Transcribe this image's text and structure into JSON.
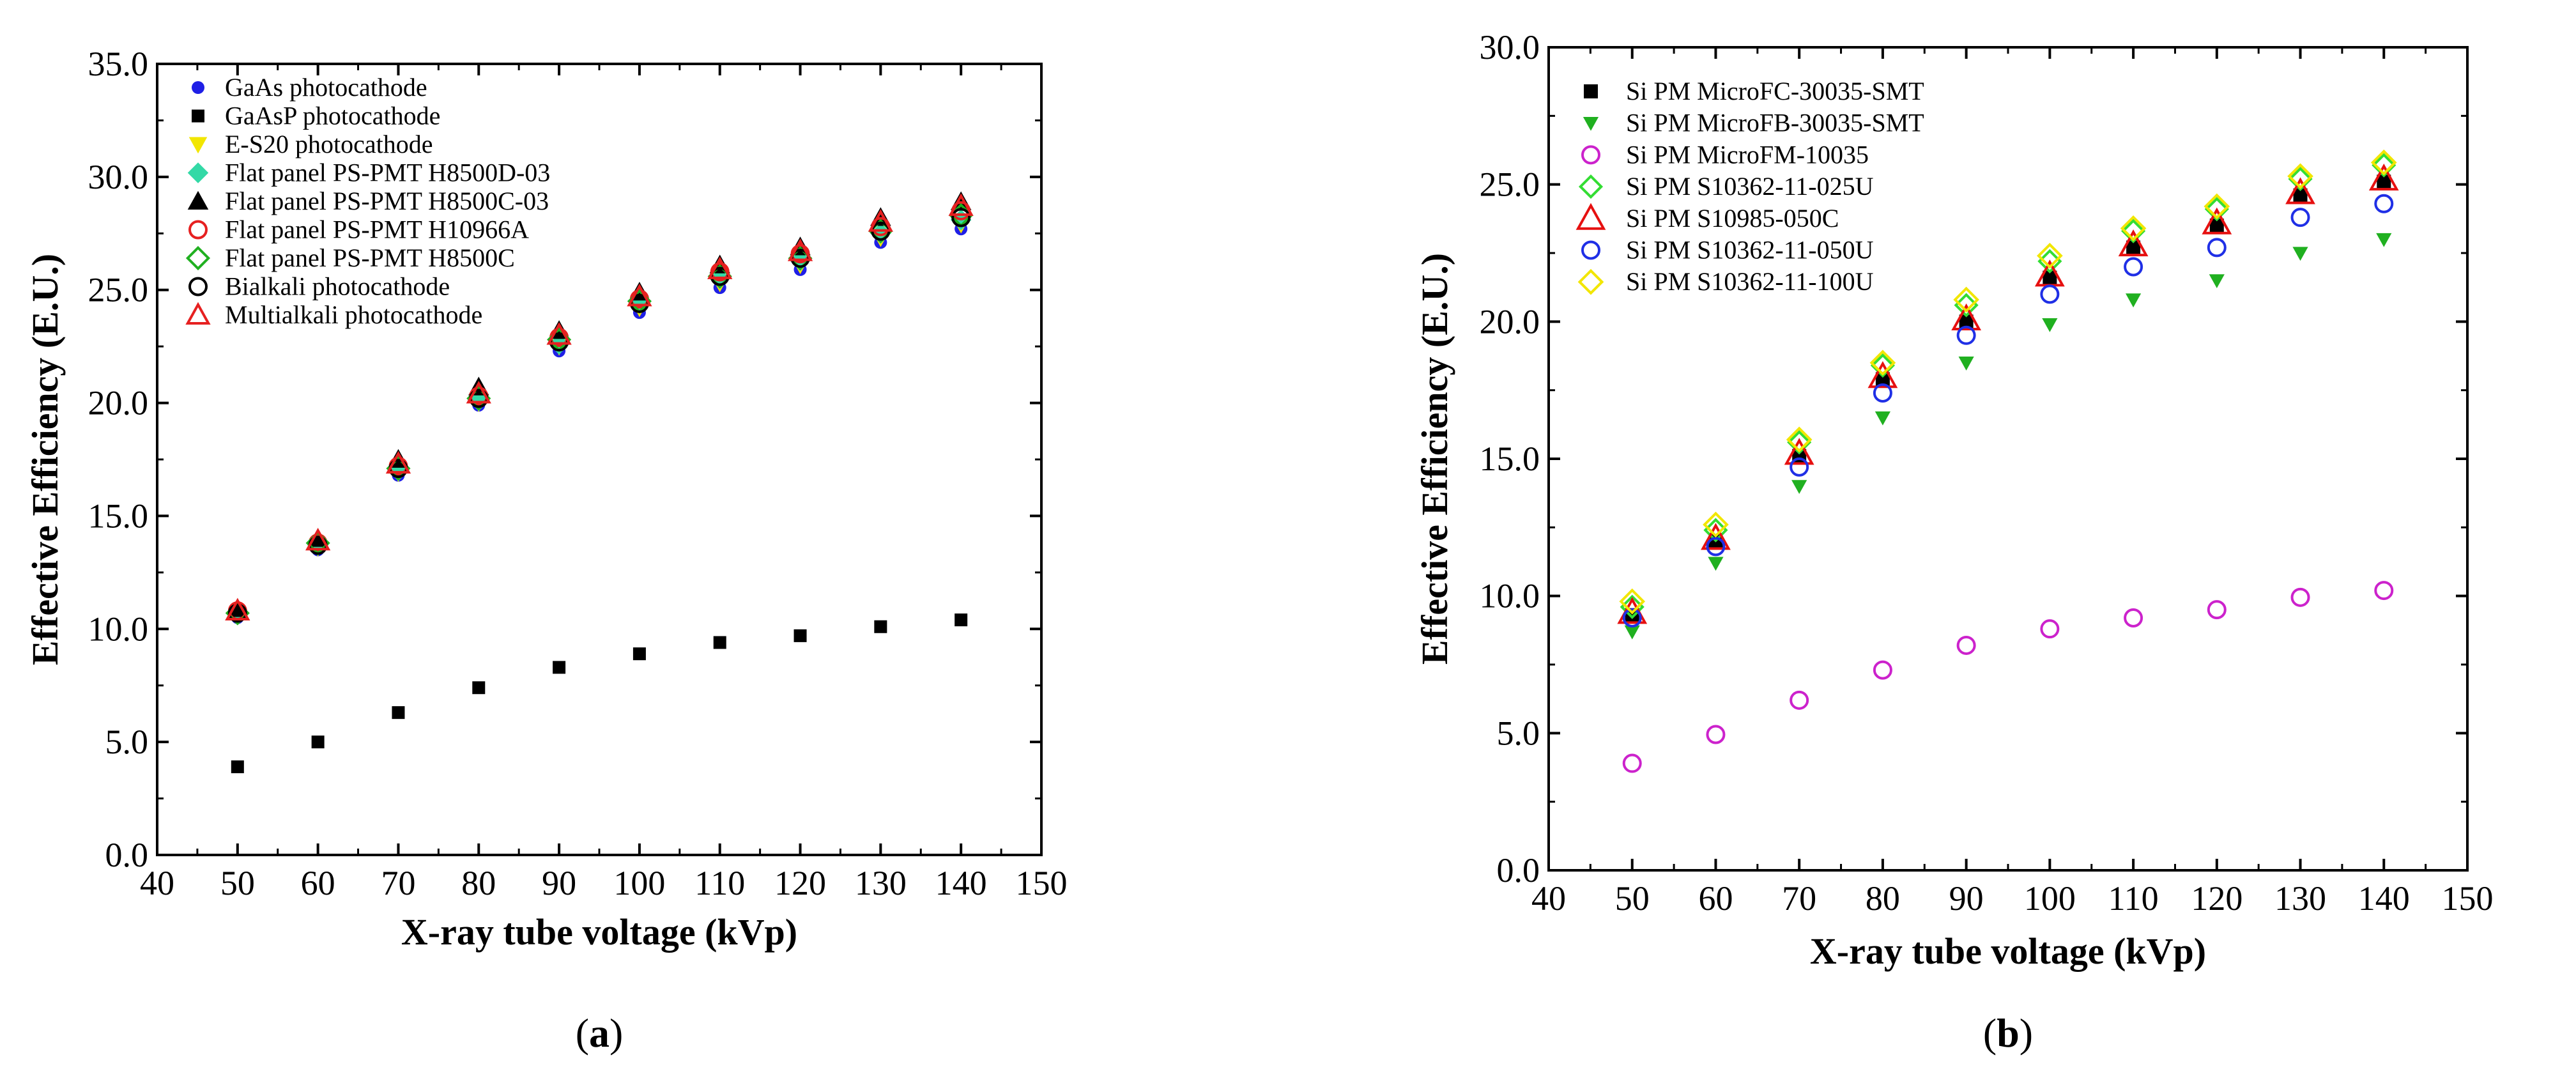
{
  "chart_data": [
    {
      "type": "scatter",
      "panel_label": "(a)",
      "title": "",
      "xlabel": "X-ray tube voltage (kVp)",
      "ylabel": "Effective Efficiency (E.U.)",
      "xlim": [
        40,
        150
      ],
      "ylim": [
        0,
        35
      ],
      "xticks": [
        "40",
        "50",
        "60",
        "70",
        "80",
        "90",
        "100",
        "110",
        "120",
        "130",
        "140",
        "150"
      ],
      "yticks": [
        "0.0",
        "5.0",
        "10.0",
        "15.0",
        "20.0",
        "25.0",
        "30.0",
        "35.0"
      ],
      "grid": false,
      "legend_position": "top-left",
      "x": [
        50,
        60,
        70,
        80,
        90,
        100,
        110,
        120,
        130,
        140
      ],
      "series": [
        {
          "name": "GaAs photocathode",
          "marker": "filled-circle",
          "color": "#1f1fe6",
          "values": [
            10.5,
            13.5,
            16.8,
            19.9,
            22.3,
            24.0,
            25.1,
            25.9,
            27.1,
            27.7
          ]
        },
        {
          "name": "GaAsP photocathode",
          "marker": "filled-square",
          "color": "#000000",
          "values": [
            3.9,
            5.0,
            6.3,
            7.4,
            8.3,
            8.9,
            9.4,
            9.7,
            10.1,
            10.4
          ]
        },
        {
          "name": "E-S20 photocathode",
          "marker": "filled-triangle-down",
          "color": "#f2e600",
          "values": [
            10.6,
            13.6,
            16.9,
            20.0,
            22.5,
            24.2,
            25.3,
            26.1,
            27.3,
            27.9
          ]
        },
        {
          "name": "Flat panel PS-PMT H8500D-03",
          "marker": "filled-diamond",
          "color": "#33d9a6",
          "values": [
            10.7,
            13.7,
            17.0,
            20.1,
            22.6,
            24.4,
            25.5,
            26.3,
            27.5,
            28.1
          ]
        },
        {
          "name": "Flat panel PS-PMT H8500C-03",
          "marker": "filled-triangle-up",
          "color": "#000000",
          "values": [
            10.9,
            14.0,
            17.5,
            20.7,
            23.2,
            24.9,
            26.1,
            26.9,
            28.2,
            28.9
          ]
        },
        {
          "name": "Flat panel PS-PMT H10966A",
          "marker": "open-circle",
          "color": "#e62020",
          "values": [
            10.8,
            13.8,
            17.2,
            20.3,
            22.9,
            24.6,
            25.8,
            26.6,
            27.8,
            28.5
          ]
        },
        {
          "name": "Flat panel PS-PMT H8500C",
          "marker": "open-diamond",
          "color": "#20b020",
          "values": [
            10.7,
            13.8,
            17.1,
            20.2,
            22.8,
            24.5,
            25.6,
            26.4,
            27.6,
            28.3
          ]
        },
        {
          "name": "Bialkali photocathode",
          "marker": "open-circle",
          "color": "#000000",
          "values": [
            10.7,
            13.7,
            17.1,
            20.2,
            22.7,
            24.4,
            25.6,
            26.4,
            27.6,
            28.2
          ]
        },
        {
          "name": "Multialkali photocathode",
          "marker": "open-triangle-up",
          "color": "#e62020",
          "values": [
            10.8,
            13.9,
            17.3,
            20.4,
            23.0,
            24.7,
            25.9,
            26.7,
            28.0,
            28.7
          ]
        }
      ]
    },
    {
      "type": "scatter",
      "panel_label": "(b)",
      "title": "",
      "xlabel": "X-ray tube voltage (kVp)",
      "ylabel": "Effective Efficiency (E.U.)",
      "xlim": [
        40,
        150
      ],
      "ylim": [
        0,
        30
      ],
      "xticks": [
        "40",
        "50",
        "60",
        "70",
        "80",
        "90",
        "100",
        "110",
        "120",
        "130",
        "140",
        "150"
      ],
      "yticks": [
        "0.0",
        "5.0",
        "10.0",
        "15.0",
        "20.0",
        "25.0",
        "30.0"
      ],
      "grid": false,
      "legend_position": "top-left",
      "x": [
        50,
        60,
        70,
        80,
        90,
        100,
        110,
        120,
        130,
        140
      ],
      "series": [
        {
          "name": "Si PM MicroFC-30035-SMT",
          "marker": "filled-square",
          "color": "#000000",
          "values": [
            9.3,
            12.0,
            15.1,
            17.9,
            20.0,
            21.6,
            22.7,
            23.5,
            24.6,
            25.1
          ]
        },
        {
          "name": "Si PM MicroFB-30035-SMT",
          "marker": "filled-triangle-down",
          "color": "#20b020",
          "values": [
            8.7,
            11.2,
            14.0,
            16.5,
            18.5,
            19.9,
            20.8,
            21.5,
            22.5,
            23.0
          ]
        },
        {
          "name": "Si PM MicroFM-10035",
          "marker": "open-circle",
          "color": "#cc22cc",
          "values": [
            3.9,
            4.95,
            6.2,
            7.3,
            8.2,
            8.8,
            9.2,
            9.5,
            9.95,
            10.2
          ]
        },
        {
          "name": "Si PM S10362-11-025U",
          "marker": "open-diamond",
          "color": "#33dd33",
          "values": [
            9.6,
            12.4,
            15.6,
            18.4,
            20.6,
            22.2,
            23.3,
            24.1,
            25.2,
            25.7
          ]
        },
        {
          "name": "Si PM S10985-050C",
          "marker": "open-triangle-up",
          "color": "#e61010",
          "values": [
            9.4,
            12.1,
            15.2,
            18.0,
            20.1,
            21.7,
            22.8,
            23.6,
            24.7,
            25.2
          ]
        },
        {
          "name": "Si PM S10362-11-050U",
          "marker": "open-circle",
          "color": "#1f2fe6",
          "values": [
            9.2,
            11.8,
            14.7,
            17.4,
            19.5,
            21.0,
            22.0,
            22.7,
            23.8,
            24.3
          ]
        },
        {
          "name": "Si PM S10362-11-100U",
          "marker": "open-diamond",
          "color": "#f2e600",
          "values": [
            9.8,
            12.6,
            15.7,
            18.5,
            20.8,
            22.4,
            23.4,
            24.2,
            25.3,
            25.8
          ]
        }
      ]
    }
  ]
}
